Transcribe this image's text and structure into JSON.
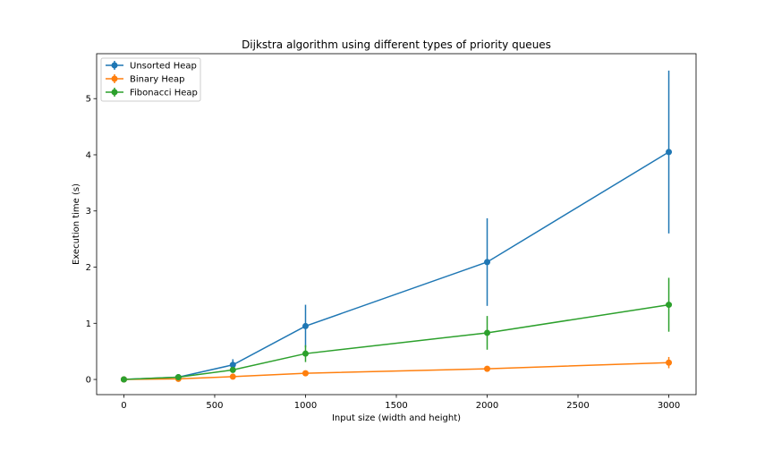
{
  "chart_data": {
    "type": "line",
    "title": "Dijkstra algorithm using different types of priority queues",
    "xlabel": "Input size (width and height)",
    "ylabel": "Execution time (s)",
    "xlim": [
      -150,
      3150
    ],
    "ylim": [
      -0.27,
      5.8
    ],
    "xticks": [
      0,
      500,
      1000,
      1500,
      2000,
      2500,
      3000
    ],
    "yticks": [
      0,
      1,
      2,
      3,
      4,
      5
    ],
    "grid": false,
    "legend_position": "upper-left",
    "series": [
      {
        "name": "Unsorted Heap",
        "color": "#1f77b4",
        "x": [
          0,
          300,
          600,
          1000,
          2000,
          3000
        ],
        "y": [
          0.0,
          0.04,
          0.26,
          0.95,
          2.09,
          4.05
        ],
        "yerr": [
          0.0,
          0.02,
          0.1,
          0.38,
          0.78,
          1.45
        ]
      },
      {
        "name": "Binary Heap",
        "color": "#ff7f0e",
        "x": [
          0,
          300,
          600,
          1000,
          2000,
          3000
        ],
        "y": [
          0.0,
          0.01,
          0.05,
          0.11,
          0.19,
          0.3
        ],
        "yerr": [
          0.0,
          0.01,
          0.02,
          0.03,
          0.05,
          0.1
        ]
      },
      {
        "name": "Fibonacci Heap",
        "color": "#2ca02c",
        "x": [
          0,
          300,
          600,
          1000,
          2000,
          3000
        ],
        "y": [
          0.0,
          0.04,
          0.17,
          0.46,
          0.83,
          1.33
        ],
        "yerr": [
          0.0,
          0.02,
          0.05,
          0.15,
          0.3,
          0.48
        ]
      }
    ]
  }
}
